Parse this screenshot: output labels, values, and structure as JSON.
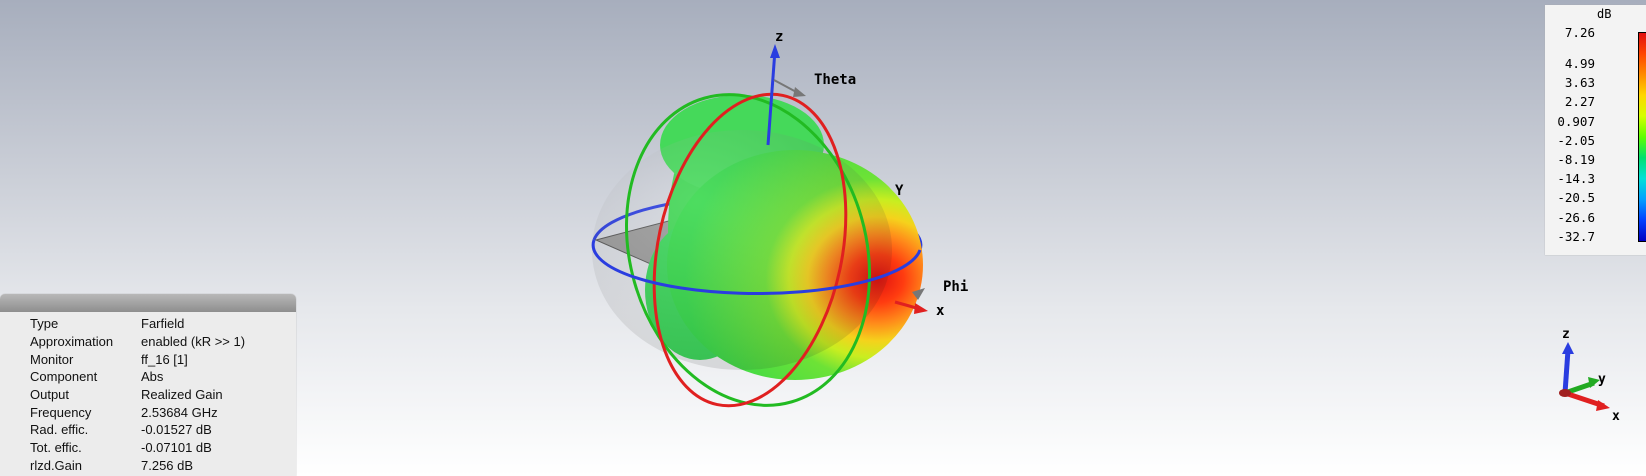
{
  "scene": {
    "axis_labels": {
      "z": "z",
      "theta": "Theta",
      "y": "Y",
      "phi": "Phi",
      "x": "x"
    },
    "triad_labels": {
      "z": "z",
      "y": "y",
      "x": "x"
    },
    "colors": {
      "x_axis": "#e02020",
      "y_axis": "#20a020",
      "z_axis": "#2040e0",
      "pattern_peak": "#e01010",
      "pattern_body": "#44dd44"
    }
  },
  "legend": {
    "unit": "dB",
    "ticks": [
      "7.26",
      "4.99",
      "3.63",
      "2.27",
      "0.907",
      "-2.05",
      "-8.19",
      "-14.3",
      "-20.5",
      "-26.6",
      "-32.7"
    ]
  },
  "info": {
    "rows": [
      {
        "key": "Type",
        "value": "Farfield"
      },
      {
        "key": "Approximation",
        "value": "enabled (kR >> 1)"
      },
      {
        "key": "Monitor",
        "value": "ff_16 [1]"
      },
      {
        "key": "Component",
        "value": "Abs"
      },
      {
        "key": "Output",
        "value": "Realized Gain"
      },
      {
        "key": "Frequency",
        "value": "2.53684 GHz"
      },
      {
        "key": "Rad. effic.",
        "value": "-0.01527 dB"
      },
      {
        "key": "Tot. effic.",
        "value": "-0.07101 dB"
      },
      {
        "key": "rlzd.Gain",
        "value": "7.256 dB"
      }
    ]
  }
}
